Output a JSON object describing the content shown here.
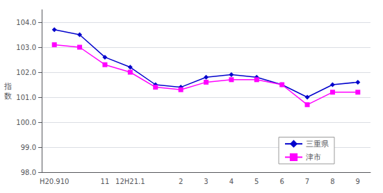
{
  "chart_data": {
    "type": "line",
    "ylabel": "指\n数",
    "categories": [
      "H20.910",
      null,
      "11",
      "12H21.1",
      null,
      "2",
      "3",
      "4",
      "5",
      "6",
      "7",
      "8",
      "9"
    ],
    "series": [
      {
        "name": "三重県",
        "color": "#0000CC",
        "marker": "diamond",
        "values": [
          103.7,
          103.5,
          102.6,
          102.2,
          101.5,
          101.4,
          101.8,
          101.9,
          101.8,
          101.5,
          101.0,
          101.5,
          101.6
        ]
      },
      {
        "name": "津市",
        "color": "#FF00FF",
        "marker": "square",
        "values": [
          103.1,
          103.0,
          102.3,
          102.0,
          101.4,
          101.3,
          101.6,
          101.7,
          101.7,
          101.5,
          100.7,
          101.2,
          101.2
        ]
      }
    ],
    "ylim": [
      98.0,
      104.5
    ],
    "yticks": [
      {
        "value": 98,
        "label": "98.0"
      },
      {
        "value": 99,
        "label": "99.0"
      },
      {
        "value": 100,
        "label": "100.0"
      },
      {
        "value": 101,
        "label": "101.0"
      },
      {
        "value": 102,
        "label": "102.0"
      },
      {
        "value": 103,
        "label": "103.0"
      },
      {
        "value": 104,
        "label": "104.0"
      }
    ],
    "grid": true,
    "legend": "lower right"
  }
}
